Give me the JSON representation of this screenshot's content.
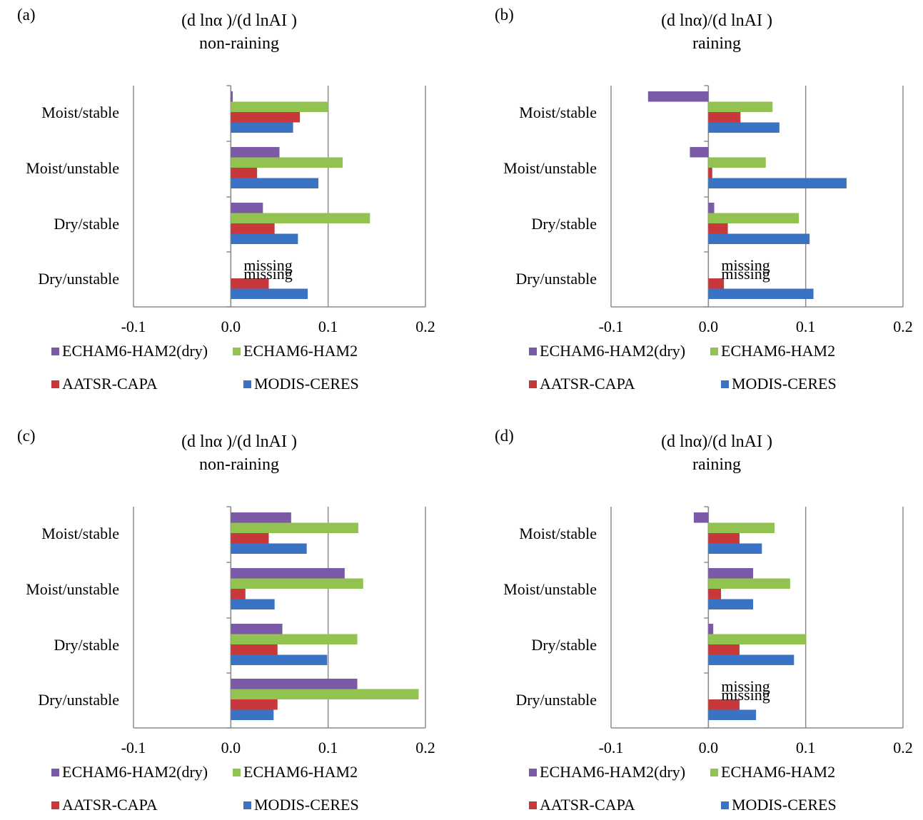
{
  "legend_row1": [
    "ECHAM6-HAM2(dry)",
    "ECHAM6-HAM2"
  ],
  "legend_row2": [
    "AATSR-CAPA",
    "MODIS-CERES"
  ],
  "colors": {
    "ECHAM6-HAM2(dry)": "#7a5aa6",
    "ECHAM6-HAM2": "#92c24f",
    "AATSR-CAPA": "#c8383b",
    "MODIS-CERES": "#3a73c4"
  },
  "chart_data": [
    {
      "type": "bar",
      "orientation": "horizontal",
      "panel": "(a)",
      "title": "(d lnα )/(d lnAI )",
      "subtitle": "non-raining",
      "categories": [
        "Moist/stable",
        "Moist/unstable",
        "Dry/stable",
        "Dry/unstable"
      ],
      "xlim": [
        -0.1,
        0.2
      ],
      "xticks": [
        "-0.1",
        "0.0",
        "0.1",
        "0.2"
      ],
      "grid": true,
      "series": [
        {
          "name": "ECHAM6-HAM2(dry)",
          "values": [
            0.002,
            0.05,
            0.033,
            null
          ]
        },
        {
          "name": "ECHAM6-HAM2",
          "values": [
            0.1,
            0.115,
            0.143,
            null
          ]
        },
        {
          "name": "AATSR-CAPA",
          "values": [
            0.071,
            0.027,
            0.045,
            0.039
          ]
        },
        {
          "name": "MODIS-CERES",
          "values": [
            0.064,
            0.09,
            0.069,
            0.079
          ]
        }
      ],
      "annotations": [
        "missing",
        "missing"
      ]
    },
    {
      "type": "bar",
      "orientation": "horizontal",
      "panel": "(b)",
      "title": "(d lnα)/(d lnAI )",
      "subtitle": "raining",
      "categories": [
        "Moist/stable",
        "Moist/unstable",
        "Dry/stable",
        "Dry/unstable"
      ],
      "xlim": [
        -0.1,
        0.2
      ],
      "xticks": [
        "-0.1",
        "0.0",
        "0.1",
        "0.2"
      ],
      "grid": true,
      "series": [
        {
          "name": "ECHAM6-HAM2(dry)",
          "values": [
            -0.062,
            -0.019,
            0.006,
            null
          ]
        },
        {
          "name": "ECHAM6-HAM2",
          "values": [
            0.066,
            0.059,
            0.093,
            null
          ]
        },
        {
          "name": "AATSR-CAPA",
          "values": [
            0.033,
            0.004,
            0.02,
            0.016
          ]
        },
        {
          "name": "MODIS-CERES",
          "values": [
            0.073,
            0.142,
            0.104,
            0.108
          ]
        }
      ],
      "annotations": [
        "missing",
        "missing"
      ]
    },
    {
      "type": "bar",
      "orientation": "horizontal",
      "panel": "(c)",
      "title": "(d lnα )/(d lnAI )",
      "subtitle": "non-raining",
      "categories": [
        "Moist/stable",
        "Moist/unstable",
        "Dry/stable",
        "Dry/unstable"
      ],
      "xlim": [
        -0.1,
        0.2
      ],
      "xticks": [
        "-0.1",
        "0.0",
        "0.1",
        "0.2"
      ],
      "grid": true,
      "series": [
        {
          "name": "ECHAM6-HAM2(dry)",
          "values": [
            0.062,
            0.117,
            0.053,
            0.13
          ]
        },
        {
          "name": "ECHAM6-HAM2",
          "values": [
            0.131,
            0.136,
            0.13,
            0.193
          ]
        },
        {
          "name": "AATSR-CAPA",
          "values": [
            0.039,
            0.015,
            0.048,
            0.048
          ]
        },
        {
          "name": "MODIS-CERES",
          "values": [
            0.078,
            0.045,
            0.099,
            0.044
          ]
        }
      ],
      "annotations": []
    },
    {
      "type": "bar",
      "orientation": "horizontal",
      "panel": "(d)",
      "title": "(d lnα)/(d lnAI )",
      "subtitle": "raining",
      "categories": [
        "Moist/stable",
        "Moist/unstable",
        "Dry/stable",
        "Dry/unstable"
      ],
      "xlim": [
        -0.1,
        0.2
      ],
      "xticks": [
        "-0.1",
        "0.0",
        "0.1",
        "0.2"
      ],
      "grid": true,
      "series": [
        {
          "name": "ECHAM6-HAM2(dry)",
          "values": [
            -0.015,
            0.046,
            0.005,
            null
          ]
        },
        {
          "name": "ECHAM6-HAM2",
          "values": [
            0.068,
            0.084,
            0.1,
            null
          ]
        },
        {
          "name": "AATSR-CAPA",
          "values": [
            0.032,
            0.013,
            0.032,
            0.032
          ]
        },
        {
          "name": "MODIS-CERES",
          "values": [
            0.055,
            0.046,
            0.088,
            0.049
          ]
        }
      ],
      "annotations": [
        "missing",
        "missing"
      ]
    }
  ]
}
